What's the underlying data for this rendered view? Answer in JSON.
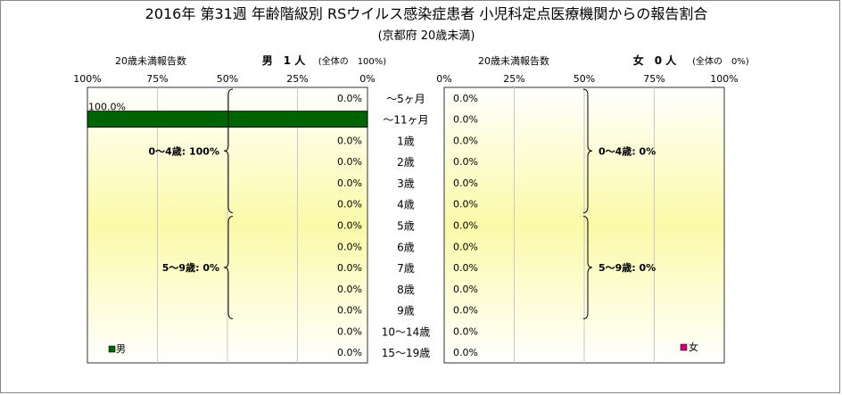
{
  "title": "2016年 第31週 年齢階級別 RSウイルス感染症患者 小児科定点医療機関からの報告割合",
  "subtitle": "(京都府 20歳未満)",
  "chart_data": {
    "type": "bar",
    "orientation": "horizontal-butterfly",
    "categories": [
      "～5ヶ月",
      "～11ヶ月",
      "1歳",
      "2歳",
      "3歳",
      "4歳",
      "5歳",
      "6歳",
      "7歳",
      "8歳",
      "9歳",
      "10～14歳",
      "15～19歳"
    ],
    "series": [
      {
        "name": "男",
        "color": "#006400",
        "values": [
          0,
          100,
          0,
          0,
          0,
          0,
          0,
          0,
          0,
          0,
          0,
          0,
          0
        ],
        "labels": [
          "0.0%",
          "100.0%",
          "0.0%",
          "0.0%",
          "0.0%",
          "0.0%",
          "0.0%",
          "0.0%",
          "0.0%",
          "0.0%",
          "0.0%",
          "0.0%",
          "0.0%"
        ]
      },
      {
        "name": "女",
        "color": "#cc0077",
        "values": [
          0,
          0,
          0,
          0,
          0,
          0,
          0,
          0,
          0,
          0,
          0,
          0,
          0
        ],
        "labels": [
          "0.0%",
          "0.0%",
          "0.0%",
          "0.0%",
          "0.0%",
          "0.0%",
          "0.0%",
          "0.0%",
          "0.0%",
          "0.0%",
          "0.0%",
          "0.0%",
          "0.0%"
        ]
      }
    ],
    "panel_headers": {
      "male": {
        "left": "20歳未満報告数",
        "title": "男　1 人",
        "total": "(全体の　100%)"
      },
      "female": {
        "left": "20歳未満報告数",
        "title": "女　0 人",
        "total": "(全体の　0%)"
      }
    },
    "male_axis_ticks": [
      "100%",
      "75%",
      "50%",
      "25%",
      "0%"
    ],
    "female_axis_ticks": [
      "0%",
      "25%",
      "50%",
      "75%",
      "100%"
    ],
    "xlim": [
      0,
      100
    ],
    "age_groups": {
      "male": [
        {
          "label": "0～4歳: 100%",
          "from": 0,
          "to": 5
        },
        {
          "label": "5～9歳: 0%",
          "from": 6,
          "to": 10
        }
      ],
      "female": [
        {
          "label": "0～4歳: 0%",
          "from": 0,
          "to": 5
        },
        {
          "label": "5～9歳: 0%",
          "from": 6,
          "to": 10
        }
      ]
    },
    "legend": {
      "male": "男",
      "female": "女"
    }
  }
}
